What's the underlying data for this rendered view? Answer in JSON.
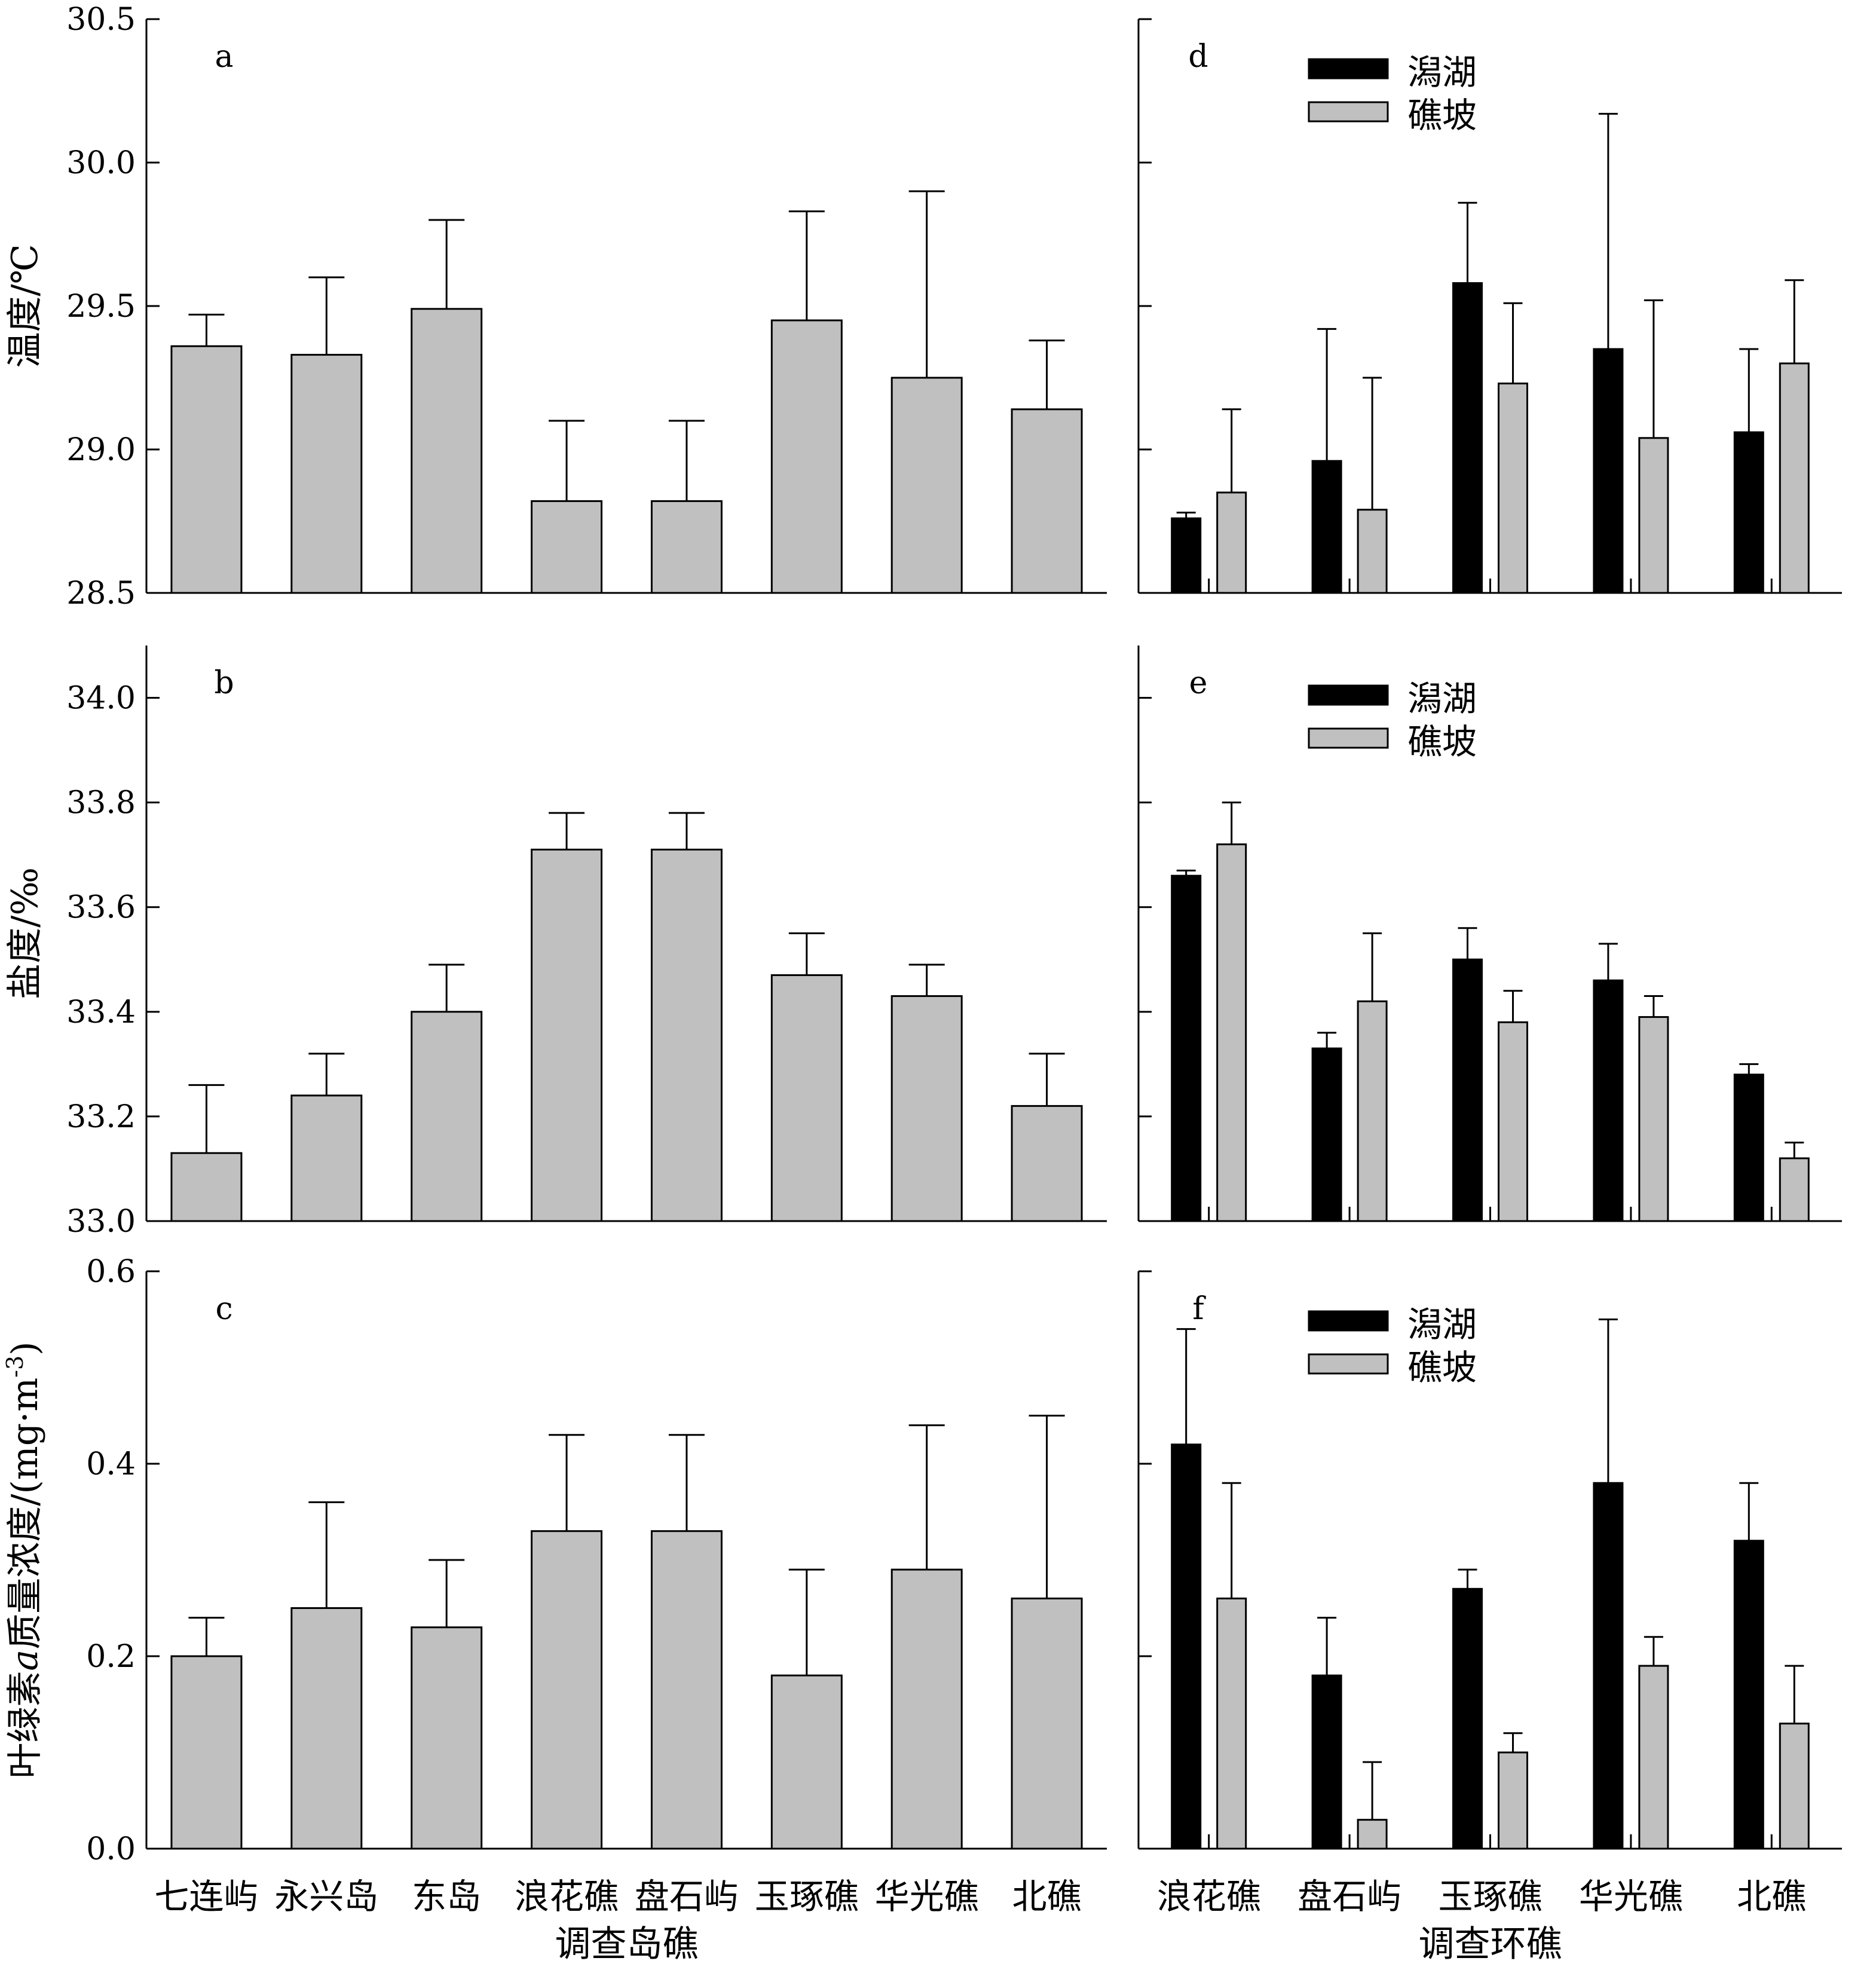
{
  "chart_data": [
    {
      "id": "a",
      "type": "bar",
      "panel_label": "a",
      "ylabel": "温度/℃",
      "ylim": [
        28.5,
        30.5
      ],
      "yticks": [
        "28.5",
        "29.0",
        "29.5",
        "30.0",
        "30.5"
      ],
      "categories": [
        "七连屿",
        "永兴岛",
        "东岛",
        "浪花礁",
        "盘石屿",
        "玉琢礁",
        "华光礁",
        "北礁"
      ],
      "series": [
        {
          "name": "",
          "color": "#c0c0c0",
          "values": [
            29.36,
            29.33,
            29.49,
            28.82,
            28.82,
            29.45,
            29.25,
            29.14
          ],
          "errors": [
            0.11,
            0.27,
            0.31,
            0.28,
            0.28,
            0.38,
            0.65,
            0.24
          ]
        }
      ]
    },
    {
      "id": "d",
      "type": "bar",
      "panel_label": "d",
      "ylim": [
        28.5,
        30.5
      ],
      "categories": [
        "浪花礁",
        "盘石屿",
        "玉琢礁",
        "华光礁",
        "北礁"
      ],
      "legend": [
        "潟湖",
        "礁坡"
      ],
      "series": [
        {
          "name": "潟湖",
          "color": "#000000",
          "values": [
            28.76,
            28.96,
            29.58,
            29.35,
            29.06
          ],
          "errors": [
            0.02,
            0.46,
            0.28,
            0.82,
            0.29
          ]
        },
        {
          "name": "礁坡",
          "color": "#c0c0c0",
          "values": [
            28.85,
            28.79,
            29.23,
            29.04,
            29.3
          ],
          "errors": [
            0.29,
            0.46,
            0.28,
            0.48,
            0.29
          ]
        }
      ]
    },
    {
      "id": "b",
      "type": "bar",
      "panel_label": "b",
      "ylabel": "盐度/‰",
      "ylim": [
        33.0,
        34.1
      ],
      "yticks": [
        "33.0",
        "33.2",
        "33.4",
        "33.6",
        "33.8",
        "34.0"
      ],
      "categories": [
        "七连屿",
        "永兴岛",
        "东岛",
        "浪花礁",
        "盘石屿",
        "玉琢礁",
        "华光礁",
        "北礁"
      ],
      "series": [
        {
          "name": "",
          "color": "#c0c0c0",
          "values": [
            33.13,
            33.24,
            33.4,
            33.71,
            33.71,
            33.47,
            33.43,
            33.22
          ],
          "errors": [
            0.13,
            0.08,
            0.09,
            0.07,
            0.07,
            0.08,
            0.06,
            0.1
          ]
        }
      ]
    },
    {
      "id": "e",
      "type": "bar",
      "panel_label": "e",
      "ylim": [
        33.0,
        34.1
      ],
      "categories": [
        "浪花礁",
        "盘石屿",
        "玉琢礁",
        "华光礁",
        "北礁"
      ],
      "legend": [
        "潟湖",
        "礁坡"
      ],
      "series": [
        {
          "name": "潟湖",
          "color": "#000000",
          "values": [
            33.66,
            33.33,
            33.5,
            33.46,
            33.28
          ],
          "errors": [
            0.01,
            0.03,
            0.06,
            0.07,
            0.02
          ]
        },
        {
          "name": "礁坡",
          "color": "#c0c0c0",
          "values": [
            33.72,
            33.42,
            33.38,
            33.39,
            33.12
          ],
          "errors": [
            0.08,
            0.13,
            0.06,
            0.04,
            0.03
          ]
        }
      ]
    },
    {
      "id": "c",
      "type": "bar",
      "panel_label": "c",
      "ylabel_prefix": "叶绿素",
      "ylabel_italic": "a",
      "ylabel_suffix": "质量浓度/(mg·m",
      "ylabel_sup": "-3",
      "ylabel_close": ")",
      "xlabel": "调查岛礁",
      "ylim": [
        0.0,
        0.6
      ],
      "yticks": [
        "0.0",
        "0.2",
        "0.4",
        "0.6"
      ],
      "categories": [
        "七连屿",
        "永兴岛",
        "东岛",
        "浪花礁",
        "盘石屿",
        "玉琢礁",
        "华光礁",
        "北礁"
      ],
      "series": [
        {
          "name": "",
          "color": "#c0c0c0",
          "values": [
            0.2,
            0.25,
            0.23,
            0.33,
            0.33,
            0.18,
            0.29,
            0.26
          ],
          "errors": [
            0.04,
            0.11,
            0.07,
            0.1,
            0.1,
            0.11,
            0.15,
            0.19
          ]
        }
      ]
    },
    {
      "id": "f",
      "type": "bar",
      "panel_label": "f",
      "xlabel": "调查环礁",
      "ylim": [
        0.0,
        0.6
      ],
      "categories": [
        "浪花礁",
        "盘石屿",
        "玉琢礁",
        "华光礁",
        "北礁"
      ],
      "legend": [
        "潟湖",
        "礁坡"
      ],
      "series": [
        {
          "name": "潟湖",
          "color": "#000000",
          "values": [
            0.42,
            0.18,
            0.27,
            0.38,
            0.32
          ],
          "errors": [
            0.12,
            0.06,
            0.02,
            0.17,
            0.06
          ]
        },
        {
          "name": "礁坡",
          "color": "#c0c0c0",
          "values": [
            0.26,
            0.03,
            0.1,
            0.19,
            0.13
          ],
          "errors": [
            0.12,
            0.06,
            0.02,
            0.03,
            0.06
          ]
        }
      ]
    }
  ]
}
